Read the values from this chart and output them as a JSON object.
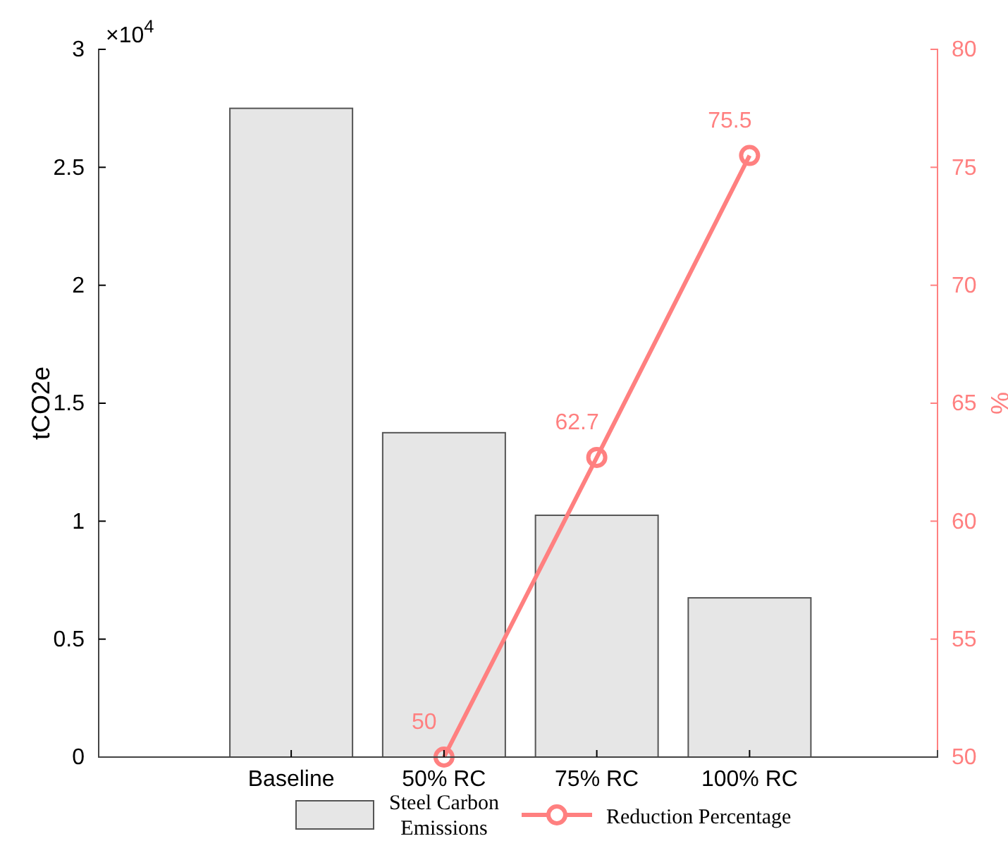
{
  "chart_data": {
    "type": "bar",
    "categories": [
      "Baseline",
      "50% RC",
      "75% RC",
      "100% RC"
    ],
    "ylabel": "tCO2e",
    "y2label": "%",
    "ylim": [
      0,
      3
    ],
    "yticks": [
      0,
      0.5,
      1,
      1.5,
      2,
      2.5,
      3
    ],
    "y2lim": [
      50,
      80
    ],
    "y2ticks": [
      50,
      55,
      60,
      65,
      70,
      75,
      80
    ],
    "annotations": [
      "×10$^{4}$"
    ],
    "legend": "bottom",
    "series": [
      {
        "name": "Steel Carbon Emissions",
        "color": "#e6e6e6",
        "values": [
          2.75,
          1.375,
          1.025,
          0.675
        ]
      },
      {
        "name": "Reduction Percentage",
        "type": "line",
        "axis": "y2",
        "color": "#ff8080",
        "marker": "circle",
        "line_style": "solid",
        "values": [
          null,
          50,
          62.7,
          75.5
        ],
        "value_labels": [
          null,
          "50",
          "62.7",
          "75.5"
        ]
      }
    ]
  }
}
